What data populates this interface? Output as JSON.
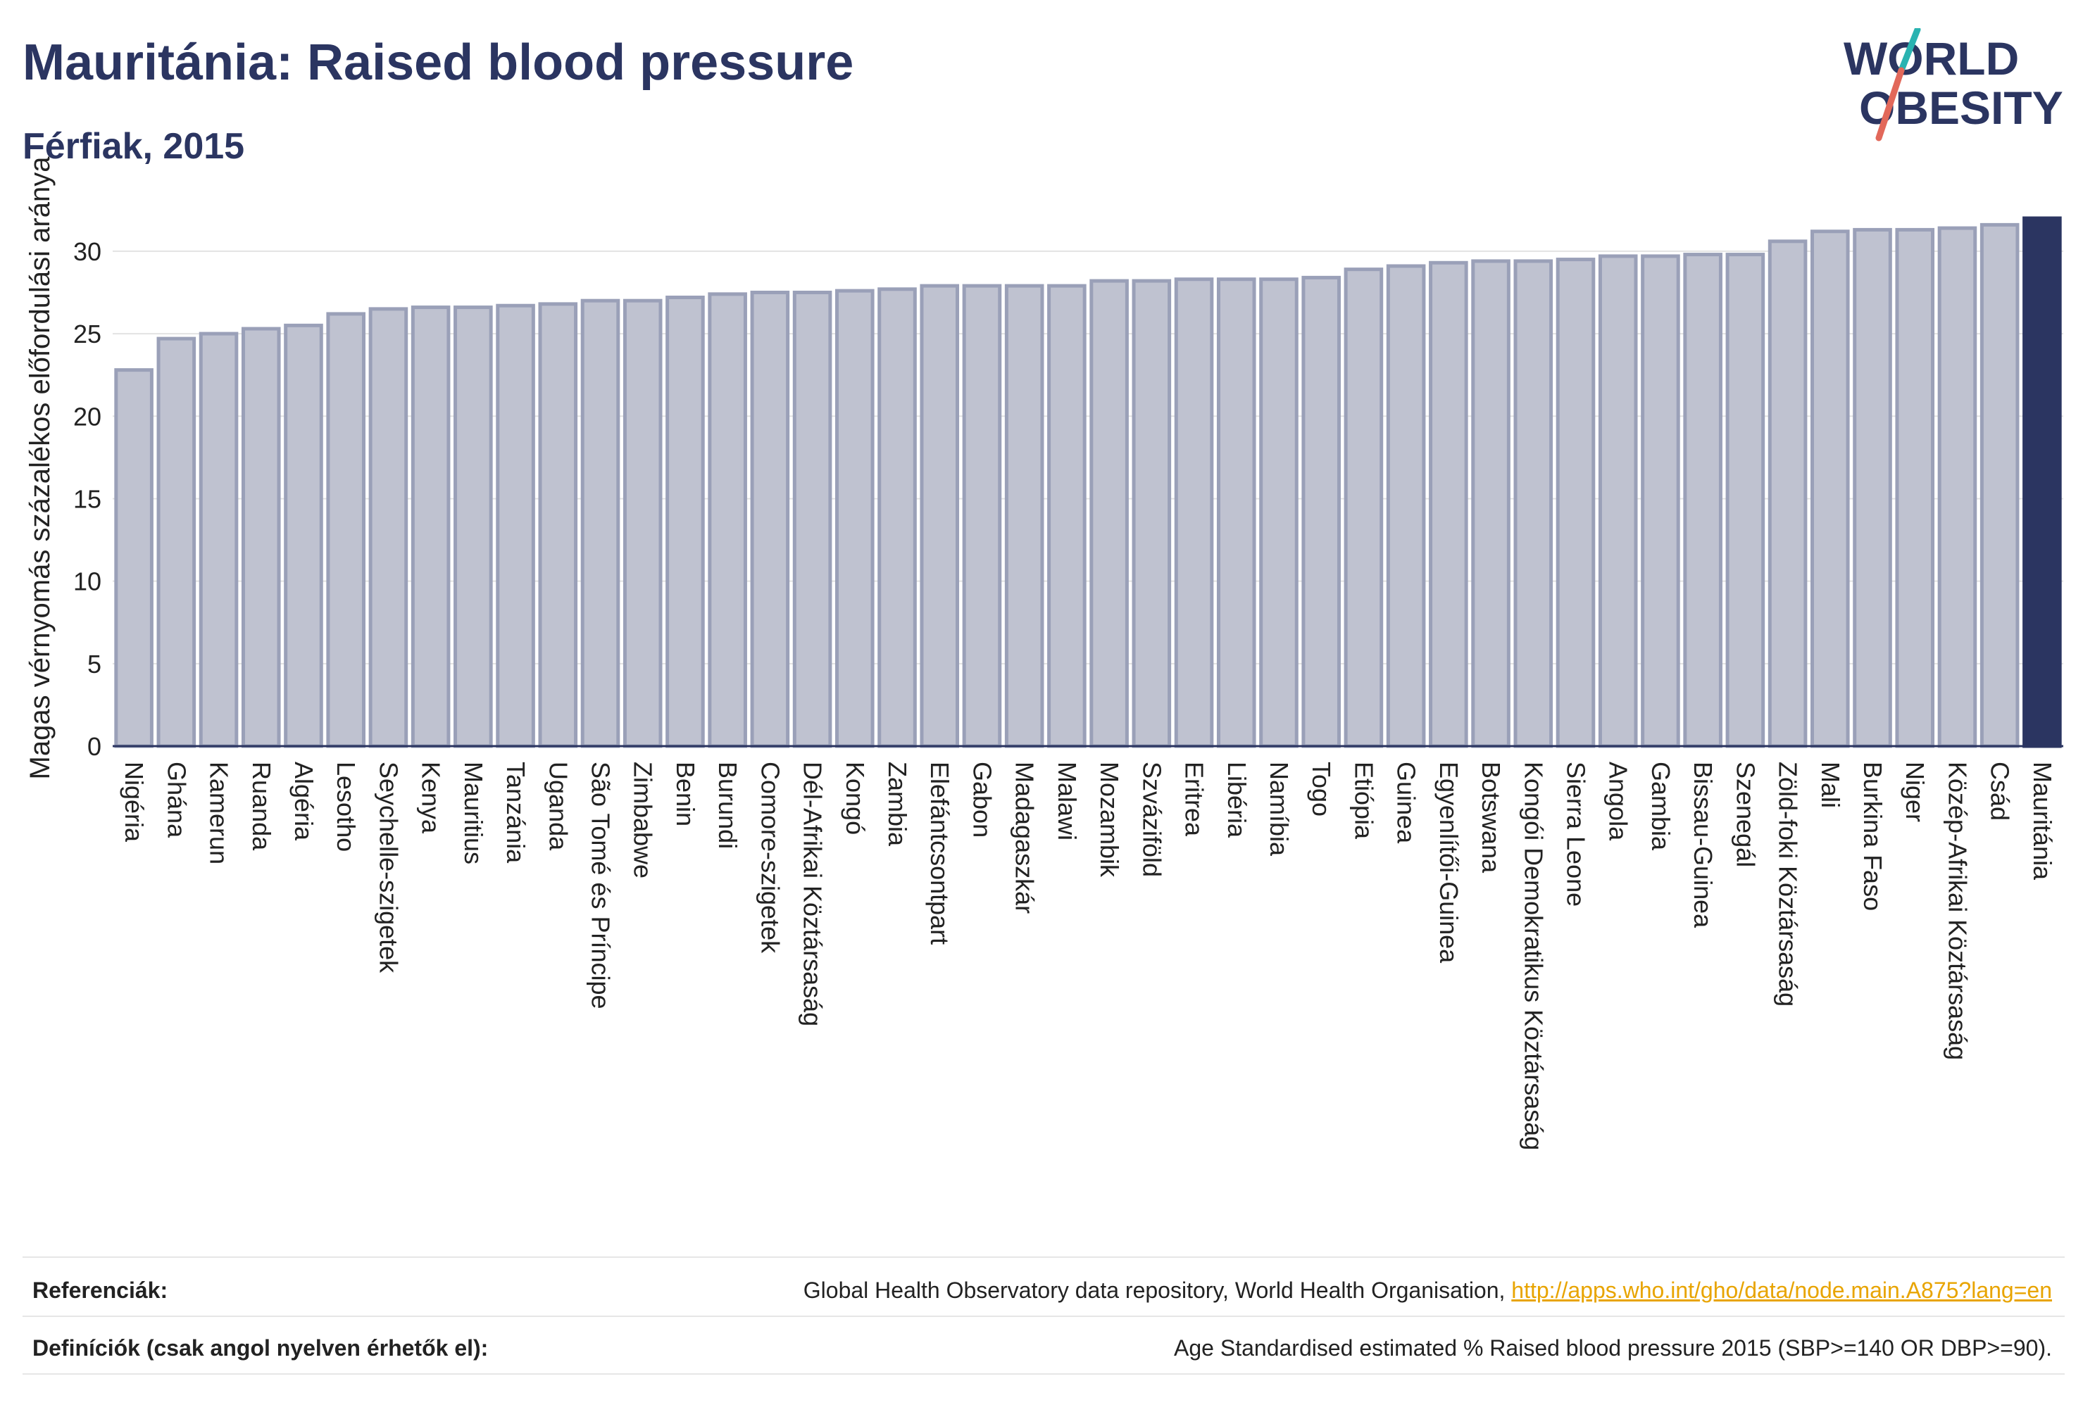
{
  "header": {
    "title": "Mauritánia: Raised blood pressure",
    "subtitle": "Férfiak, 2015"
  },
  "logo": {
    "line1": "WORLD",
    "line2": "OBESITY",
    "colors": {
      "text": "#2b3561",
      "slash_top": "#2ab3b1",
      "slash_bottom": "#e2685a"
    }
  },
  "chart_data": {
    "type": "bar",
    "ylabel": "Magas vérnyomás százalékos előfordulási aránya",
    "xlabel": "",
    "ylim": [
      0,
      32
    ],
    "yticks": [
      0,
      5,
      10,
      15,
      20,
      25,
      30
    ],
    "grid": true,
    "highlight": "Mauritánia",
    "colors": {
      "bar": "#bfc2d0",
      "bar_edge": "#9aa0b8",
      "highlight": "#2b3561"
    },
    "categories": [
      "Nigéria",
      "Ghána",
      "Kamerun",
      "Ruanda",
      "Algéria",
      "Lesotho",
      "Seychelle-szigetek",
      "Kenya",
      "Mauritius",
      "Tanzánia",
      "Uganda",
      "São Tomé és Príncipe",
      "Zimbabwe",
      "Benin",
      "Burundi",
      "Comore-szigetek",
      "Dél-Afrikai Köztársaság",
      "Kongó",
      "Zambia",
      "Elefántcsontpart",
      "Gabon",
      "Madagaszkár",
      "Malawi",
      "Mozambik",
      "Szváziföld",
      "Eritrea",
      "Libéria",
      "Namíbia",
      "Togo",
      "Etiópia",
      "Guinea",
      "Egyenlítői-Guinea",
      "Botswana",
      "Kongói Demokratikus Köztársaság",
      "Sierra Leone",
      "Angola",
      "Gambia",
      "Bissau-Guinea",
      "Szenegál",
      "Zöld-foki Köztársaság",
      "Mali",
      "Burkina Faso",
      "Niger",
      "Közép-Afrikai Köztársaság",
      "Csád",
      "Mauritánia"
    ],
    "values": [
      22.8,
      24.7,
      25.0,
      25.3,
      25.5,
      26.2,
      26.5,
      26.6,
      26.6,
      26.7,
      26.8,
      27.0,
      27.0,
      27.2,
      27.4,
      27.5,
      27.5,
      27.6,
      27.7,
      27.9,
      27.9,
      27.9,
      27.9,
      28.2,
      28.2,
      28.3,
      28.3,
      28.3,
      28.4,
      28.9,
      29.1,
      29.3,
      29.4,
      29.4,
      29.5,
      29.7,
      29.7,
      29.8,
      29.8,
      30.6,
      31.2,
      31.3,
      31.3,
      31.4,
      31.6,
      32.0
    ]
  },
  "footer": {
    "references_label": "Referenciák:",
    "references_text": "Global Health Observatory data repository, World Health Organisation,",
    "references_link": "http://apps.who.int/gho/data/node.main.A875?lang=en",
    "definitions_label": "Definíciók (csak angol nyelven érhetők el):",
    "definitions_text": "Age Standardised estimated % Raised blood pressure 2015 (SBP>=140 OR DBP>=90)."
  }
}
